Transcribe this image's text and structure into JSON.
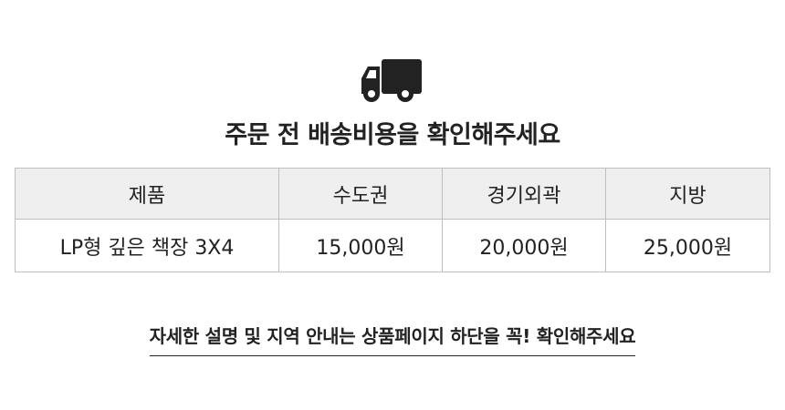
{
  "header": {
    "icon": "truck-icon",
    "title": "주문 전 배송비용을 확인해주세요"
  },
  "table": {
    "columns": [
      "제품",
      "수도권",
      "경기외곽",
      "지방"
    ],
    "rows": [
      [
        "LP형 깊은 책장 3X4",
        "15,000원",
        "20,000원",
        "25,000원"
      ]
    ]
  },
  "notice": {
    "text": "자세한 설명 및 지역 안내는 상품페이지 하단을 꼭! 확인해주세요"
  }
}
